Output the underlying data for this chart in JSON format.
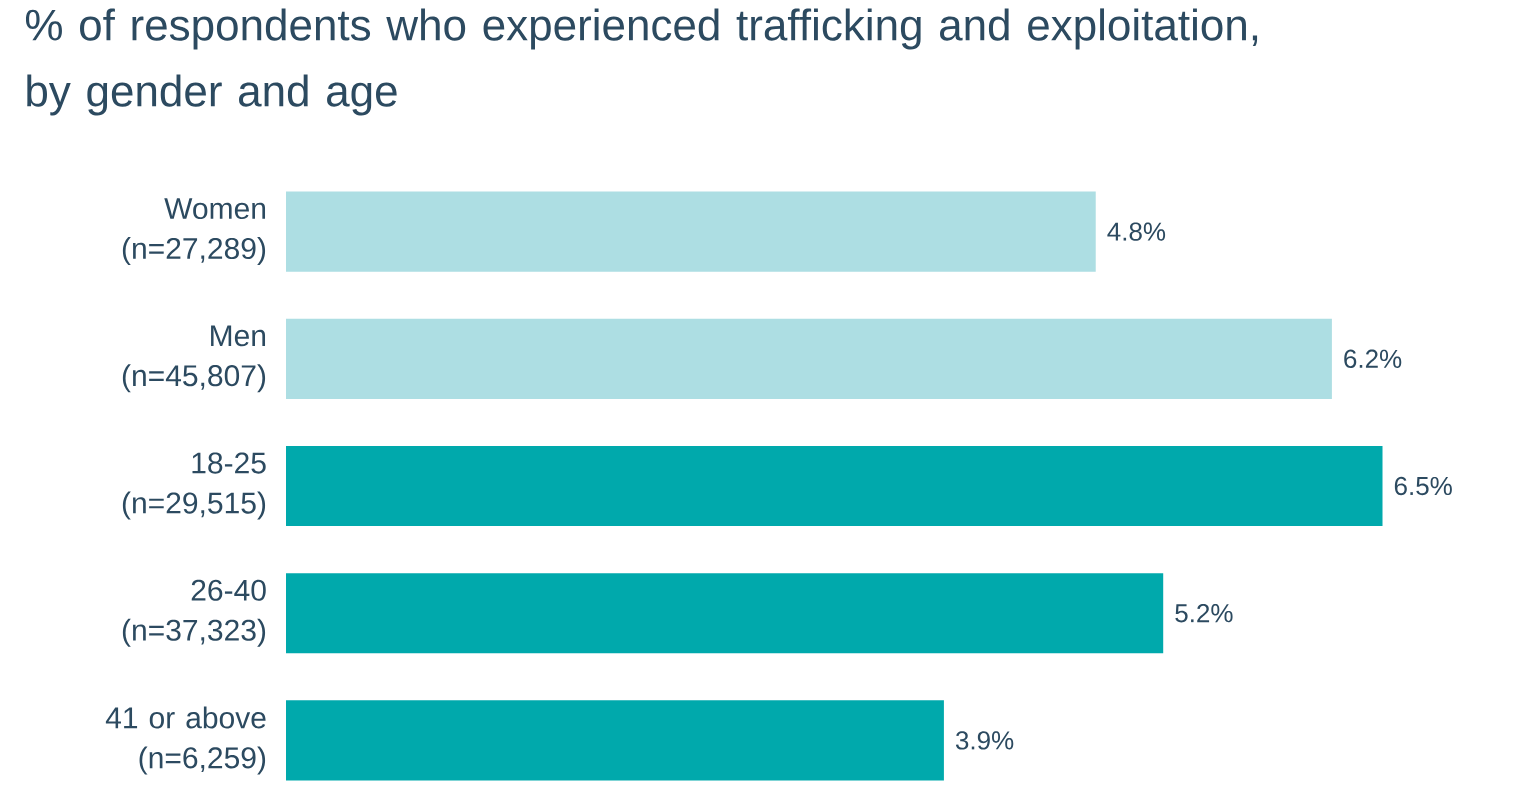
{
  "chart_data": {
    "type": "bar",
    "orientation": "horizontal",
    "title": "% of respondents who experienced trafficking and exploitation, by gender and age",
    "categories": [
      "Women (n=27,289)",
      "Men (n=45,807)",
      "18-25 (n=29,515)",
      "26-40 (n=37,323)",
      "41 or above (n=6,259)"
    ],
    "values": [
      4.8,
      6.2,
      6.5,
      5.2,
      3.9
    ],
    "colors": [
      "#addee3",
      "#addee3",
      "#00a9ac",
      "#00a9ac",
      "#00a9ac"
    ],
    "value_labels": [
      "4.8%",
      "6.2%",
      "6.5%",
      "5.2%",
      "3.9%"
    ]
  }
}
